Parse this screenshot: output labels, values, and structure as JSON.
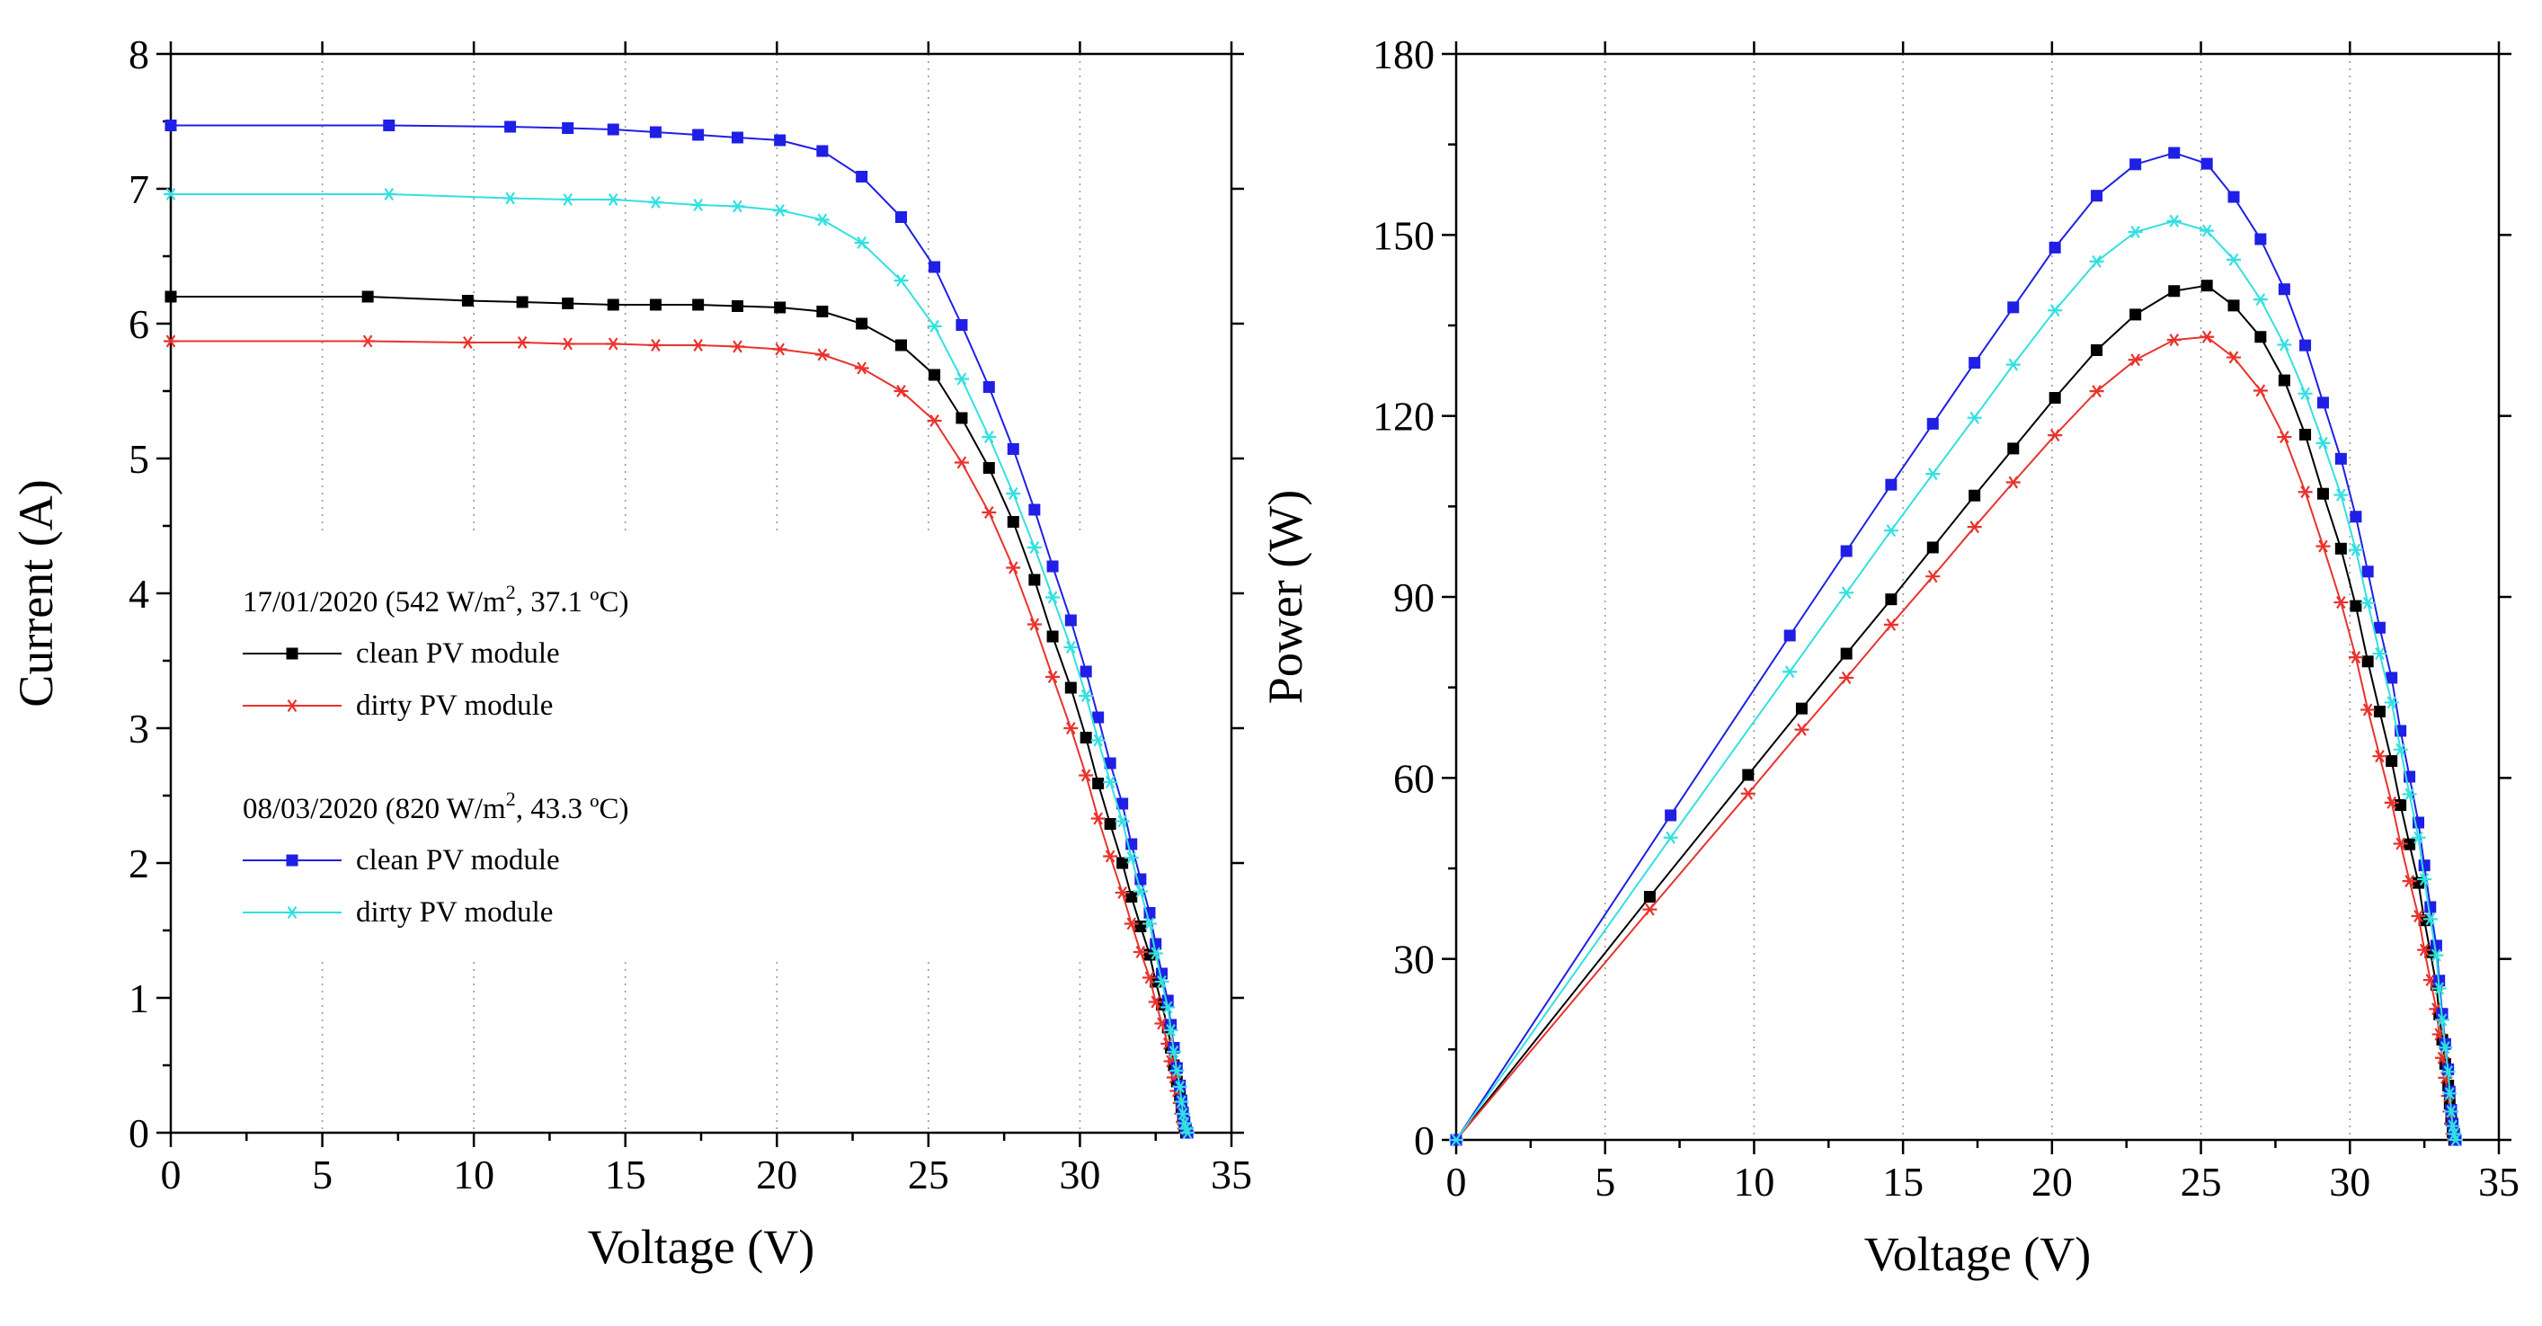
{
  "chart_data": [
    {
      "type": "line",
      "panel": "left",
      "xlabel": "Voltage (V)",
      "ylabel": "Current (A)",
      "xlim": [
        0,
        35
      ],
      "ylim": [
        0,
        8
      ],
      "xticks": [
        0,
        5,
        10,
        15,
        20,
        25,
        30,
        35
      ],
      "yticks": [
        0,
        1,
        2,
        3,
        4,
        5,
        6,
        7,
        8
      ],
      "x_grid_at": [
        5,
        10,
        15,
        20,
        25,
        30
      ],
      "legend": {
        "position": "middle-left",
        "groups": [
          {
            "title": "17/01/2020 (542 W/m",
            "title_sup": "2",
            "title_rest": ", 37.1 ºC)",
            "entries": [
              "clean PV module",
              "dirty PV module"
            ]
          },
          {
            "title": "08/03/2020 (820 W/m",
            "title_sup": "2",
            "title_rest": ", 43.3 ºC)",
            "entries": [
              "clean PV module",
              "dirty PV module"
            ]
          }
        ]
      },
      "series": [
        {
          "name": "17/01/2020 clean PV module",
          "color": "#000000",
          "marker": "square",
          "x": [
            0,
            6.5,
            9.8,
            11.6,
            13.1,
            14.6,
            16.0,
            17.4,
            18.7,
            20.1,
            21.5,
            22.8,
            24.1,
            25.2,
            26.1,
            27.0,
            27.8,
            28.5,
            29.1,
            29.7,
            30.2,
            30.6,
            31.0,
            31.4,
            31.7,
            32.0,
            32.3,
            32.5,
            32.7,
            32.9,
            33.0,
            33.1,
            33.2,
            33.3,
            33.35,
            33.4,
            33.45,
            33.5
          ],
          "y": [
            6.2,
            6.2,
            6.17,
            6.16,
            6.15,
            6.14,
            6.14,
            6.14,
            6.13,
            6.12,
            6.09,
            6.0,
            5.84,
            5.62,
            5.3,
            4.93,
            4.53,
            4.1,
            3.68,
            3.3,
            2.93,
            2.59,
            2.29,
            2.0,
            1.75,
            1.53,
            1.32,
            1.12,
            0.95,
            0.78,
            0.63,
            0.5,
            0.38,
            0.27,
            0.18,
            0.1,
            0.04,
            0.0
          ]
        },
        {
          "name": "17/01/2020 dirty PV module",
          "color": "#e8332d",
          "marker": "asterisk",
          "x": [
            0,
            6.5,
            9.8,
            11.6,
            13.1,
            14.6,
            16.0,
            17.4,
            18.7,
            20.1,
            21.5,
            22.8,
            24.1,
            25.2,
            26.1,
            27.0,
            27.8,
            28.5,
            29.1,
            29.7,
            30.2,
            30.6,
            31.0,
            31.4,
            31.7,
            32.0,
            32.3,
            32.5,
            32.7,
            32.9,
            33.0,
            33.1,
            33.2,
            33.3,
            33.35,
            33.4,
            33.45,
            33.5
          ],
          "y": [
            5.87,
            5.87,
            5.86,
            5.86,
            5.85,
            5.85,
            5.84,
            5.84,
            5.83,
            5.81,
            5.77,
            5.67,
            5.5,
            5.28,
            4.97,
            4.6,
            4.19,
            3.77,
            3.38,
            3.0,
            2.65,
            2.33,
            2.05,
            1.78,
            1.55,
            1.34,
            1.15,
            0.97,
            0.81,
            0.66,
            0.53,
            0.41,
            0.31,
            0.22,
            0.14,
            0.08,
            0.03,
            0.0
          ]
        },
        {
          "name": "08/03/2020 clean PV module",
          "color": "#1f1fe6",
          "marker": "square",
          "x": [
            0,
            7.2,
            11.2,
            13.1,
            14.6,
            16.0,
            17.4,
            18.7,
            20.1,
            21.5,
            22.8,
            24.1,
            25.2,
            26.1,
            27.0,
            27.8,
            28.5,
            29.1,
            29.7,
            30.2,
            30.6,
            31.0,
            31.4,
            31.7,
            32.0,
            32.3,
            32.5,
            32.7,
            32.9,
            33.0,
            33.1,
            33.2,
            33.3,
            33.35,
            33.4,
            33.45,
            33.5,
            33.55
          ],
          "y": [
            7.47,
            7.47,
            7.46,
            7.45,
            7.44,
            7.42,
            7.4,
            7.38,
            7.36,
            7.28,
            7.09,
            6.79,
            6.42,
            5.99,
            5.53,
            5.07,
            4.62,
            4.2,
            3.8,
            3.42,
            3.08,
            2.74,
            2.44,
            2.14,
            1.88,
            1.63,
            1.4,
            1.18,
            0.98,
            0.8,
            0.63,
            0.48,
            0.35,
            0.24,
            0.15,
            0.08,
            0.03,
            0.0
          ]
        },
        {
          "name": "08/03/2020 dirty PV module",
          "color": "#33e0e0",
          "marker": "asterisk",
          "x": [
            0,
            7.2,
            11.2,
            13.1,
            14.6,
            16.0,
            17.4,
            18.7,
            20.1,
            21.5,
            22.8,
            24.1,
            25.2,
            26.1,
            27.0,
            27.8,
            28.5,
            29.1,
            29.7,
            30.2,
            30.6,
            31.0,
            31.4,
            31.7,
            32.0,
            32.3,
            32.5,
            32.7,
            32.9,
            33.0,
            33.1,
            33.2,
            33.3,
            33.35,
            33.4,
            33.45,
            33.5,
            33.55
          ],
          "y": [
            6.96,
            6.96,
            6.93,
            6.92,
            6.92,
            6.9,
            6.88,
            6.87,
            6.84,
            6.77,
            6.6,
            6.32,
            5.98,
            5.59,
            5.16,
            4.74,
            4.34,
            3.97,
            3.6,
            3.24,
            2.91,
            2.6,
            2.31,
            2.04,
            1.79,
            1.55,
            1.33,
            1.12,
            0.93,
            0.76,
            0.6,
            0.46,
            0.34,
            0.23,
            0.14,
            0.07,
            0.03,
            0.0
          ]
        }
      ]
    },
    {
      "type": "line",
      "panel": "right",
      "xlabel": "Voltage (V)",
      "ylabel": "Power (W)",
      "xlim": [
        0,
        35
      ],
      "ylim": [
        0,
        180
      ],
      "xticks": [
        0,
        5,
        10,
        15,
        20,
        25,
        30,
        35
      ],
      "yticks": [
        0,
        30,
        60,
        90,
        120,
        150,
        180
      ],
      "x_grid_at": [
        5,
        10,
        15,
        20,
        25,
        30
      ],
      "series": [
        {
          "name": "17/01/2020 clean PV module",
          "color": "#000000",
          "marker": "square",
          "x": [
            0,
            6.5,
            9.8,
            11.6,
            13.1,
            14.6,
            16.0,
            17.4,
            18.7,
            20.1,
            21.5,
            22.8,
            24.1,
            25.2,
            26.1,
            27.0,
            27.8,
            28.5,
            29.1,
            29.7,
            30.2,
            30.6,
            31.0,
            31.4,
            31.7,
            32.0,
            32.3,
            32.5,
            32.7,
            32.9,
            33.0,
            33.1,
            33.2,
            33.3,
            33.35,
            33.4,
            33.45,
            33.5
          ],
          "y": [
            0,
            40.3,
            60.5,
            71.5,
            80.6,
            89.6,
            98.2,
            106.8,
            114.6,
            123.0,
            130.9,
            136.8,
            140.7,
            141.6,
            138.3,
            133.1,
            125.9,
            116.9,
            107.1,
            98.0,
            88.5,
            79.3,
            71.0,
            62.8,
            55.5,
            49.0,
            42.6,
            36.4,
            31.1,
            25.7,
            20.8,
            16.6,
            12.6,
            9.0,
            6.0,
            3.3,
            1.3,
            0.0
          ]
        },
        {
          "name": "17/01/2020 dirty PV module",
          "color": "#e8332d",
          "marker": "asterisk",
          "x": [
            0,
            6.5,
            9.8,
            11.6,
            13.1,
            14.6,
            16.0,
            17.4,
            18.7,
            20.1,
            21.5,
            22.8,
            24.1,
            25.2,
            26.1,
            27.0,
            27.8,
            28.5,
            29.1,
            29.7,
            30.2,
            30.6,
            31.0,
            31.4,
            31.7,
            32.0,
            32.3,
            32.5,
            32.7,
            32.9,
            33.0,
            33.1,
            33.2,
            33.3,
            33.35,
            33.4,
            33.45,
            33.5
          ],
          "y": [
            0,
            38.2,
            57.4,
            68.0,
            76.6,
            85.4,
            93.4,
            101.6,
            109.0,
            116.8,
            124.1,
            129.3,
            132.6,
            133.1,
            129.7,
            124.2,
            116.5,
            107.4,
            98.4,
            89.1,
            80.0,
            71.3,
            63.6,
            55.9,
            49.1,
            42.9,
            37.1,
            31.5,
            26.5,
            21.7,
            17.5,
            13.6,
            10.3,
            7.3,
            4.7,
            2.7,
            1.0,
            0.0
          ]
        },
        {
          "name": "08/03/2020 clean PV module",
          "color": "#1f1fe6",
          "marker": "square",
          "x": [
            0,
            7.2,
            11.2,
            13.1,
            14.6,
            16.0,
            17.4,
            18.7,
            20.1,
            21.5,
            22.8,
            24.1,
            25.2,
            26.1,
            27.0,
            27.8,
            28.5,
            29.1,
            29.7,
            30.2,
            30.6,
            31.0,
            31.4,
            31.7,
            32.0,
            32.3,
            32.5,
            32.7,
            32.9,
            33.0,
            33.1,
            33.2,
            33.3,
            33.35,
            33.4,
            33.45,
            33.5,
            33.55
          ],
          "y": [
            0,
            53.8,
            83.6,
            97.6,
            108.6,
            118.7,
            128.8,
            138.0,
            147.9,
            156.5,
            161.7,
            163.6,
            161.8,
            156.3,
            149.3,
            141.0,
            131.7,
            122.2,
            112.9,
            103.3,
            94.2,
            84.9,
            76.6,
            67.8,
            60.2,
            52.6,
            45.5,
            38.6,
            32.2,
            26.4,
            20.9,
            15.9,
            11.7,
            8.0,
            5.0,
            2.7,
            1.0,
            0.0
          ]
        },
        {
          "name": "08/03/2020 dirty PV module",
          "color": "#33e0e0",
          "marker": "asterisk",
          "x": [
            0,
            7.2,
            11.2,
            13.1,
            14.6,
            16.0,
            17.4,
            18.7,
            20.1,
            21.5,
            22.8,
            24.1,
            25.2,
            26.1,
            27.0,
            27.8,
            28.5,
            29.1,
            29.7,
            30.2,
            30.6,
            31.0,
            31.4,
            31.7,
            32.0,
            32.3,
            32.5,
            32.7,
            32.9,
            33.0,
            33.1,
            33.2,
            33.3,
            33.35,
            33.4,
            33.45,
            33.5,
            33.55
          ],
          "y": [
            0,
            50.1,
            77.6,
            90.7,
            101.0,
            110.4,
            119.7,
            128.5,
            137.5,
            145.6,
            150.5,
            152.3,
            150.7,
            145.9,
            139.3,
            131.8,
            123.7,
            115.5,
            106.9,
            97.8,
            89.0,
            80.6,
            72.5,
            64.7,
            57.3,
            50.1,
            43.2,
            36.6,
            30.6,
            25.1,
            19.9,
            15.3,
            11.3,
            7.7,
            4.7,
            2.3,
            1.0,
            0.0
          ]
        }
      ]
    }
  ]
}
